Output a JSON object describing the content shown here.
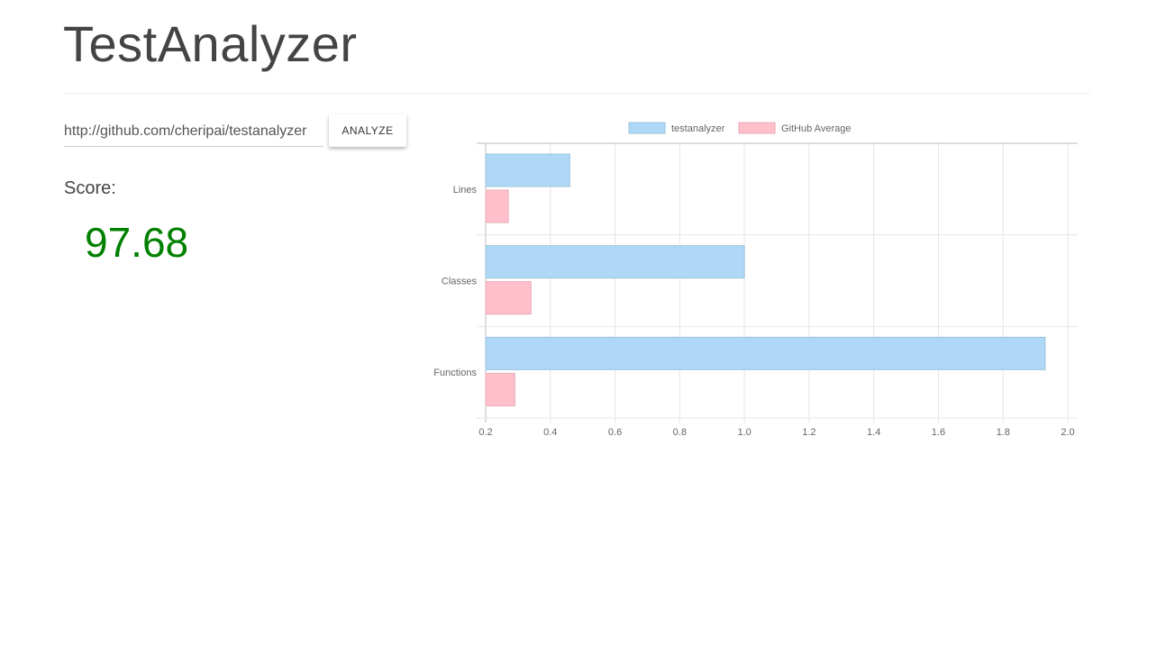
{
  "header": {
    "title": "TestAnalyzer"
  },
  "form": {
    "url_value": "http://github.com/cheripai/testanalyzer",
    "analyze_label": "ANALYZE"
  },
  "score": {
    "label": "Score:",
    "value": "97.68",
    "color": "#008000"
  },
  "chart_data": {
    "type": "bar",
    "orientation": "horizontal",
    "title": "",
    "xlabel": "",
    "ylabel": "",
    "categories": [
      "Lines",
      "Classes",
      "Functions"
    ],
    "series": [
      {
        "name": "testanalyzer",
        "values": [
          0.46,
          1.0,
          1.93
        ],
        "color": "#aed8f5",
        "border": "#9cc3df"
      },
      {
        "name": "GitHub Average",
        "values": [
          0.27,
          0.34,
          0.29
        ],
        "color": "#ffc0cb",
        "border": "#e8a9b5"
      }
    ],
    "xlim": [
      0.2,
      2.0
    ],
    "xticks": [
      "0.2",
      "0.4",
      "0.6",
      "0.8",
      "1.0",
      "1.2",
      "1.4",
      "1.6",
      "1.8",
      "2.0"
    ],
    "grid": true,
    "legend": "top-center"
  }
}
